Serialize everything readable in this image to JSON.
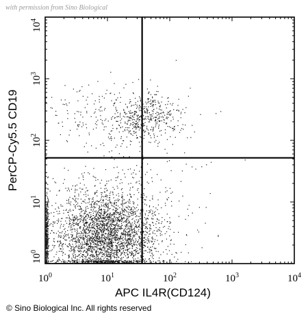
{
  "chart_data": {
    "type": "scatter",
    "title": "",
    "xlabel": "APC IL4R(CD124)",
    "ylabel": "PerCP-Cy5.5 CD19",
    "xscale": "log",
    "yscale": "log",
    "xlim": [
      1,
      10000
    ],
    "ylim": [
      1,
      10000
    ],
    "x_ticks": [
      {
        "base": "10",
        "exp": "0"
      },
      {
        "base": "10",
        "exp": "1"
      },
      {
        "base": "10",
        "exp": "2"
      },
      {
        "base": "10",
        "exp": "3"
      },
      {
        "base": "10",
        "exp": "4"
      }
    ],
    "y_ticks": [
      {
        "base": "10",
        "exp": "0"
      },
      {
        "base": "10",
        "exp": "1"
      },
      {
        "base": "10",
        "exp": "2"
      },
      {
        "base": "10",
        "exp": "3"
      },
      {
        "base": "10",
        "exp": "4"
      }
    ],
    "quadrant_gates": {
      "x": 36,
      "y": 52
    },
    "point_color": "#1a1a1a",
    "populations": [
      {
        "center_log": [
          0.92,
          0.3
        ],
        "spread_log": [
          0.5,
          0.5
        ],
        "count": 2600,
        "note": "main cluster (lower-left)"
      },
      {
        "center_log": [
          1.0,
          0.55
        ],
        "spread_log": [
          0.35,
          0.28
        ],
        "count": 1000,
        "note": "dense core"
      },
      {
        "center_log": [
          1.65,
          2.38
        ],
        "spread_log": [
          0.25,
          0.18
        ],
        "count": 380,
        "note": "CD19+ IL4R+ cluster"
      },
      {
        "center_log": [
          1.1,
          2.4
        ],
        "spread_log": [
          0.5,
          0.28
        ],
        "count": 260,
        "note": "CD19+ IL4R- spread"
      },
      {
        "center_log": [
          1.6,
          1.2
        ],
        "spread_log": [
          0.55,
          0.6
        ],
        "count": 110,
        "note": "sparse background"
      }
    ],
    "pile_up": [
      {
        "axis": "left",
        "count": 320
      },
      {
        "axis": "bottom",
        "count": 240
      }
    ]
  },
  "watermark": "with permission from Sino Biological",
  "copyright": "© Sino Biological Inc. All rights reserved"
}
